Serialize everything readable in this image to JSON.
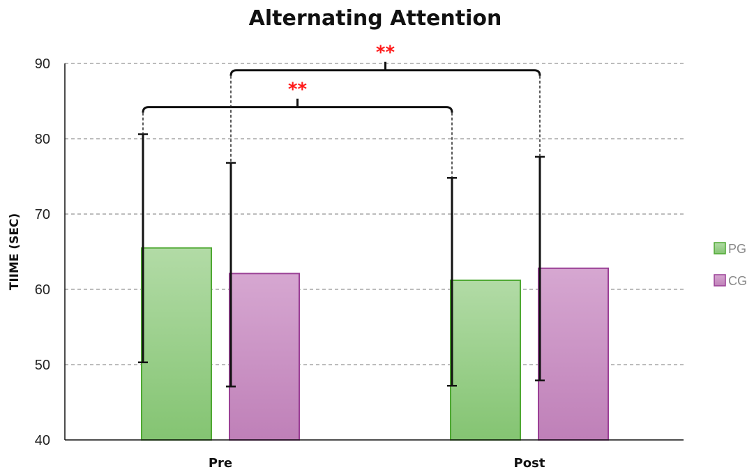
{
  "chart_data": {
    "type": "bar",
    "title": "Alternating Attention",
    "ylabel": "TIIME (SEC)",
    "xlabel": "",
    "ylim": [
      40,
      90
    ],
    "yticks": [
      "40",
      "50",
      "60",
      "70",
      "80",
      "90"
    ],
    "grid": true,
    "legend_position": "right",
    "categories": [
      "Pre",
      "Post"
    ],
    "series": [
      {
        "name": "PG",
        "color": "#8fcc7e",
        "edge": "#4ea832",
        "values": [
          65.5,
          61.2
        ],
        "err_low": [
          50.3,
          47.2
        ],
        "err_high": [
          80.6,
          74.8
        ]
      },
      {
        "name": "CG",
        "color": "#c890c2",
        "edge": "#9a3f95",
        "values": [
          62.1,
          62.8
        ],
        "err_low": [
          47.1,
          47.9
        ],
        "err_high": [
          76.8,
          77.6
        ]
      }
    ],
    "annotations": [
      {
        "label": "**",
        "from_series": 0,
        "level": 84.2
      },
      {
        "label": "**",
        "from_series": 1,
        "level": 89.1
      }
    ]
  }
}
